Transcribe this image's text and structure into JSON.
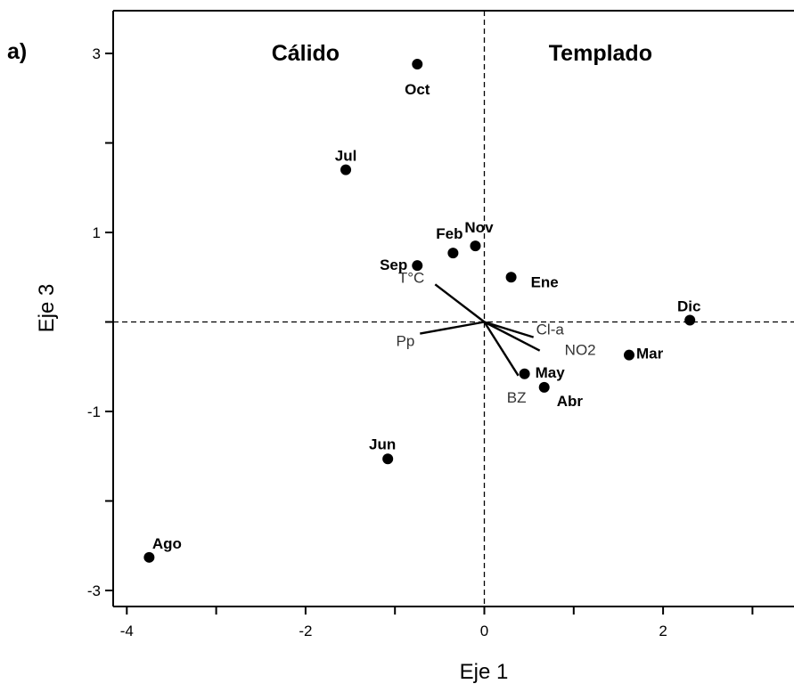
{
  "chart_data": {
    "type": "scatter",
    "panel_label": "a)",
    "xlabel": "Eje 1",
    "ylabel": "Eje 3",
    "xlim": [
      -4.2,
      3.5
    ],
    "ylim": [
      -3.2,
      3.5
    ],
    "x_ticks": [
      -4,
      -3,
      -2,
      -1,
      0,
      1,
      2,
      3
    ],
    "x_tick_labels": [
      "-4",
      "",
      "-2",
      "",
      "0",
      "",
      "2",
      ""
    ],
    "y_ticks": [
      -3,
      -2,
      -1,
      0,
      1,
      2,
      3
    ],
    "y_tick_labels": [
      "-3",
      "",
      "-1",
      "",
      "1",
      "",
      "3"
    ],
    "reference_lines": {
      "x": 0,
      "y": 0,
      "style": "dashed"
    },
    "regions": [
      {
        "label": "Cálido",
        "x": -2.0,
        "y": 3.0
      },
      {
        "label": "Templado",
        "x": 1.3,
        "y": 3.0
      }
    ],
    "points": [
      {
        "label": "Oct",
        "x": -0.75,
        "y": 2.88
      },
      {
        "label": "Jul",
        "x": -1.55,
        "y": 1.7
      },
      {
        "label": "Feb",
        "x": -0.35,
        "y": 0.77
      },
      {
        "label": "Nov",
        "x": -0.1,
        "y": 0.85
      },
      {
        "label": "Sep",
        "x": -0.75,
        "y": 0.63
      },
      {
        "label": "Ene",
        "x": 0.3,
        "y": 0.5
      },
      {
        "label": "Dic",
        "x": 2.3,
        "y": 0.02
      },
      {
        "label": "Mar",
        "x": 1.62,
        "y": -0.37
      },
      {
        "label": "May",
        "x": 0.45,
        "y": -0.58
      },
      {
        "label": "Abr",
        "x": 0.67,
        "y": -0.73
      },
      {
        "label": "Jun",
        "x": -1.08,
        "y": -1.53
      },
      {
        "label": "Ago",
        "x": -3.75,
        "y": -2.63
      }
    ],
    "vectors": [
      {
        "label": "T°C",
        "x": -0.55,
        "y": 0.42
      },
      {
        "label": "Pp",
        "x": -0.72,
        "y": -0.13
      },
      {
        "label": "Cl-a",
        "x": 0.55,
        "y": -0.17
      },
      {
        "label": "NO2",
        "x": 0.62,
        "y": -0.32
      },
      {
        "label": "BZ",
        "x": 0.38,
        "y": -0.6
      }
    ]
  }
}
